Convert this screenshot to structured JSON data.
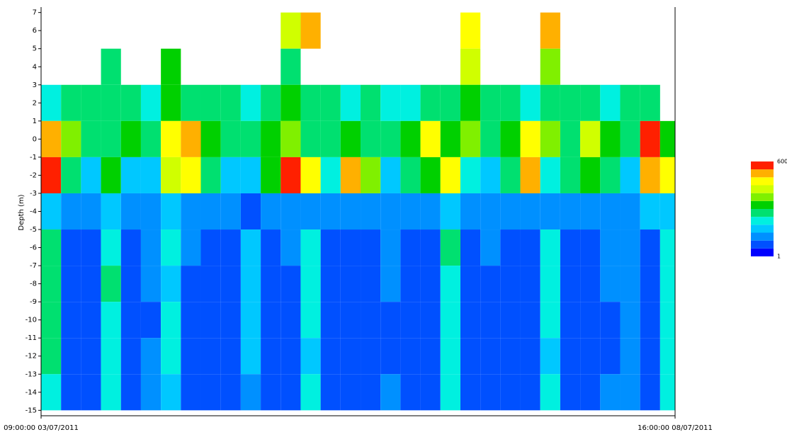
{
  "chart_data": {
    "type": "heatmap",
    "y_label": "Depth (m)",
    "xlim": [
      0,
      127
    ],
    "xticks": [
      {
        "value": 0,
        "label": "09:00:00 03/07/2011"
      },
      {
        "value": 127,
        "label": "16:00:00 08/07/2011"
      }
    ],
    "ylim": [
      -15.3,
      7.3
    ],
    "yticks": [
      7,
      6,
      5,
      4,
      3,
      2,
      1,
      0,
      -1,
      -2,
      -3,
      -4,
      -5,
      -6,
      -7,
      -8,
      -9,
      -10,
      -11,
      -12,
      -13,
      -14,
      -15
    ],
    "x_bins": [
      0,
      4,
      8,
      12,
      16,
      20,
      24,
      28,
      32,
      36,
      40,
      44,
      48,
      52,
      56,
      60,
      64,
      68,
      72,
      76,
      80,
      84,
      88,
      92,
      96,
      100,
      104,
      108,
      112,
      116,
      120,
      124,
      127
    ],
    "y_bins": [
      7,
      5,
      3,
      1,
      -1,
      -3,
      -5,
      -7,
      -9,
      -11,
      -13,
      -15
    ],
    "z": [
      [
        null,
        null,
        null,
        null,
        null,
        null,
        null,
        null,
        null,
        null,
        null,
        null,
        450,
        520,
        null,
        null,
        null,
        null,
        null,
        null,
        null,
        480,
        null,
        null,
        null,
        520,
        null,
        null,
        null,
        null,
        null,
        null
      ],
      [
        null,
        null,
        null,
        300,
        null,
        null,
        350,
        null,
        null,
        null,
        null,
        null,
        300,
        null,
        null,
        null,
        null,
        null,
        null,
        null,
        null,
        420,
        null,
        null,
        null,
        380,
        null,
        null,
        null,
        null,
        null,
        null
      ],
      [
        250,
        300,
        280,
        260,
        300,
        240,
        350,
        280,
        260,
        300,
        250,
        280,
        320,
        280,
        260,
        240,
        260,
        220,
        250,
        300,
        280,
        330,
        260,
        280,
        250,
        300,
        270,
        280,
        240,
        260,
        280,
        null
      ],
      [
        520,
        380,
        300,
        260,
        330,
        280,
        480,
        540,
        320,
        280,
        300,
        350,
        380,
        300,
        280,
        330,
        300,
        260,
        330,
        460,
        350,
        380,
        280,
        320,
        470,
        380,
        300,
        420,
        320,
        300,
        560,
        350
      ],
      [
        560,
        300,
        160,
        320,
        200,
        180,
        420,
        500,
        260,
        180,
        200,
        330,
        560,
        480,
        230,
        540,
        360,
        200,
        260,
        330,
        480,
        240,
        200,
        300,
        520,
        230,
        280,
        330,
        300,
        180,
        540,
        480
      ],
      [
        200,
        130,
        120,
        160,
        120,
        110,
        180,
        150,
        140,
        110,
        100,
        120,
        130,
        140,
        120,
        150,
        120,
        110,
        130,
        140,
        180,
        120,
        110,
        130,
        140,
        120,
        130,
        140,
        120,
        110,
        160,
        200
      ],
      [
        260,
        100,
        80,
        250,
        90,
        120,
        230,
        110,
        90,
        80,
        200,
        90,
        110,
        240,
        80,
        100,
        90,
        120,
        80,
        100,
        260,
        90,
        110,
        80,
        100,
        230,
        90,
        80,
        120,
        150,
        100,
        230
      ],
      [
        280,
        90,
        70,
        260,
        80,
        110,
        200,
        100,
        80,
        70,
        180,
        80,
        100,
        220,
        70,
        90,
        80,
        110,
        70,
        90,
        250,
        80,
        100,
        70,
        90,
        220,
        80,
        70,
        110,
        140,
        90,
        240
      ],
      [
        270,
        80,
        60,
        240,
        70,
        100,
        220,
        90,
        70,
        60,
        170,
        70,
        90,
        230,
        60,
        80,
        70,
        100,
        60,
        80,
        240,
        70,
        90,
        60,
        80,
        210,
        70,
        60,
        100,
        130,
        80,
        250
      ],
      [
        260,
        80,
        60,
        230,
        70,
        120,
        210,
        90,
        70,
        60,
        160,
        70,
        90,
        200,
        60,
        80,
        70,
        100,
        60,
        80,
        230,
        70,
        90,
        60,
        80,
        200,
        70,
        60,
        100,
        130,
        80,
        240
      ],
      [
        250,
        90,
        70,
        240,
        80,
        110,
        200,
        100,
        80,
        70,
        150,
        80,
        100,
        210,
        70,
        90,
        80,
        110,
        70,
        90,
        220,
        80,
        100,
        70,
        90,
        210,
        80,
        70,
        110,
        140,
        90,
        250
      ]
    ],
    "zlim": [
      1,
      600
    ],
    "zticks": [
      600,
      1
    ],
    "colors": [
      "#0000ff",
      "#0050ff",
      "#0090ff",
      "#00c8ff",
      "#00f0e0",
      "#00e070",
      "#00d000",
      "#80f000",
      "#d0ff00",
      "#ffff00",
      "#ffb000",
      "#ff2000"
    ]
  }
}
